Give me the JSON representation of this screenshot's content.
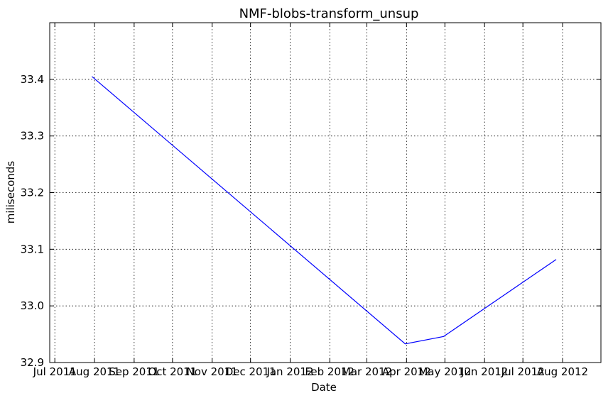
{
  "chart_data": {
    "type": "line",
    "title": "NMF-blobs-transform_unsup",
    "xlabel": "Date",
    "ylabel": "miliseconds",
    "grid": true,
    "x_ticks": [
      "2011-07-01",
      "2011-08-01",
      "2011-09-01",
      "2011-10-01",
      "2011-11-01",
      "2011-12-01",
      "2012-01-01",
      "2012-02-01",
      "2012-03-01",
      "2012-04-01",
      "2012-05-01",
      "2012-06-01",
      "2012-07-01",
      "2012-08-01"
    ],
    "x_tick_labels": [
      "Jul 2011",
      "Aug 2011",
      "Sep 2011",
      "Oct 2011",
      "Nov 2011",
      "Dec 2011",
      "Jan 2012",
      "Feb 2012",
      "Mar 2012",
      "Apr 2012",
      "May 2012",
      "Jun 2012",
      "Jul 2012",
      "Aug 2012"
    ],
    "xlim": [
      "2011-06-27",
      "2012-08-31"
    ],
    "y_ticks": [
      32.9,
      33.0,
      33.1,
      33.2,
      33.3,
      33.4
    ],
    "y_tick_labels": [
      "32.9",
      "33.0",
      "33.1",
      "33.2",
      "33.3",
      "33.4"
    ],
    "ylim": [
      32.9,
      33.5
    ],
    "series": [
      {
        "color": "#0000ff",
        "x": [
          "2011-07-30",
          "2012-03-31",
          "2012-04-30",
          "2012-07-27"
        ],
        "y": [
          33.405,
          32.933,
          32.946,
          33.082
        ]
      }
    ]
  }
}
